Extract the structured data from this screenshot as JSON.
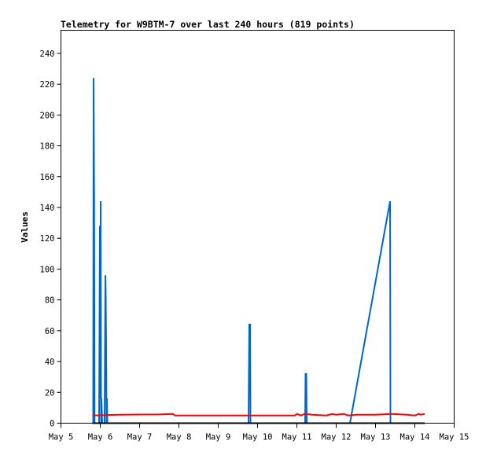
{
  "chart_data": {
    "type": "line",
    "title": "Telemetry for W9BTM-7 over last 240 hours (819 points)",
    "ylabel": "Values",
    "xlabel": "",
    "x_ticks": [
      "May 5",
      "May 6",
      "May 7",
      "May 8",
      "May 9",
      "May 10",
      "May 11",
      "May 12",
      "May 13",
      "May 14",
      "May 15"
    ],
    "y_ticks": [
      "0",
      "20",
      "40",
      "60",
      "80",
      "100",
      "120",
      "140",
      "160",
      "180",
      "200",
      "220",
      "240"
    ],
    "xlim_days": [
      5,
      15
    ],
    "ylim": [
      0,
      255
    ],
    "grid": false,
    "legend": "none",
    "series": [
      {
        "color": "#0066cc",
        "points": [
          [
            5.82,
            0
          ],
          [
            5.83,
            224
          ],
          [
            5.845,
            144
          ],
          [
            5.855,
            0
          ],
          [
            5.97,
            0
          ],
          [
            5.98,
            64
          ],
          [
            5.99,
            128
          ],
          [
            6.0,
            16
          ],
          [
            6.01,
            144
          ],
          [
            6.02,
            0
          ],
          [
            6.03,
            16
          ],
          [
            6.04,
            8
          ],
          [
            6.05,
            0
          ],
          [
            6.11,
            0
          ],
          [
            6.12,
            48
          ],
          [
            6.13,
            96
          ],
          [
            6.14,
            80
          ],
          [
            6.15,
            48
          ],
          [
            6.16,
            0
          ],
          [
            6.17,
            16
          ],
          [
            6.18,
            0
          ],
          [
            9.77,
            0
          ],
          [
            9.78,
            32
          ],
          [
            9.79,
            64
          ],
          [
            9.81,
            64
          ],
          [
            9.82,
            0
          ],
          [
            11.21,
            0
          ],
          [
            11.22,
            32
          ],
          [
            11.24,
            32
          ],
          [
            11.25,
            0
          ],
          [
            12.35,
            0
          ],
          [
            13.37,
            144
          ],
          [
            13.38,
            0
          ]
        ]
      },
      {
        "color": "#ff0000",
        "points": [
          [
            5.8,
            5
          ],
          [
            6.5,
            5.5
          ],
          [
            7.0,
            5.6
          ],
          [
            7.5,
            5.7
          ],
          [
            7.85,
            6
          ],
          [
            7.9,
            5
          ],
          [
            8.5,
            5
          ],
          [
            9.5,
            5
          ],
          [
            10.5,
            5
          ],
          [
            10.95,
            5
          ],
          [
            11.0,
            6
          ],
          [
            11.1,
            5
          ],
          [
            11.2,
            6
          ],
          [
            11.4,
            5.5
          ],
          [
            11.75,
            5
          ],
          [
            11.9,
            6
          ],
          [
            12.0,
            5.5
          ],
          [
            12.2,
            6
          ],
          [
            12.3,
            5
          ],
          [
            12.5,
            5.5
          ],
          [
            13.0,
            5.5
          ],
          [
            13.4,
            6
          ],
          [
            13.8,
            5.5
          ],
          [
            14.0,
            5
          ],
          [
            14.1,
            6
          ],
          [
            14.15,
            5.5
          ],
          [
            14.25,
            6
          ]
        ]
      },
      {
        "color": "#000000",
        "points": [
          [
            5.8,
            0
          ],
          [
            14.25,
            0
          ]
        ]
      }
    ]
  }
}
